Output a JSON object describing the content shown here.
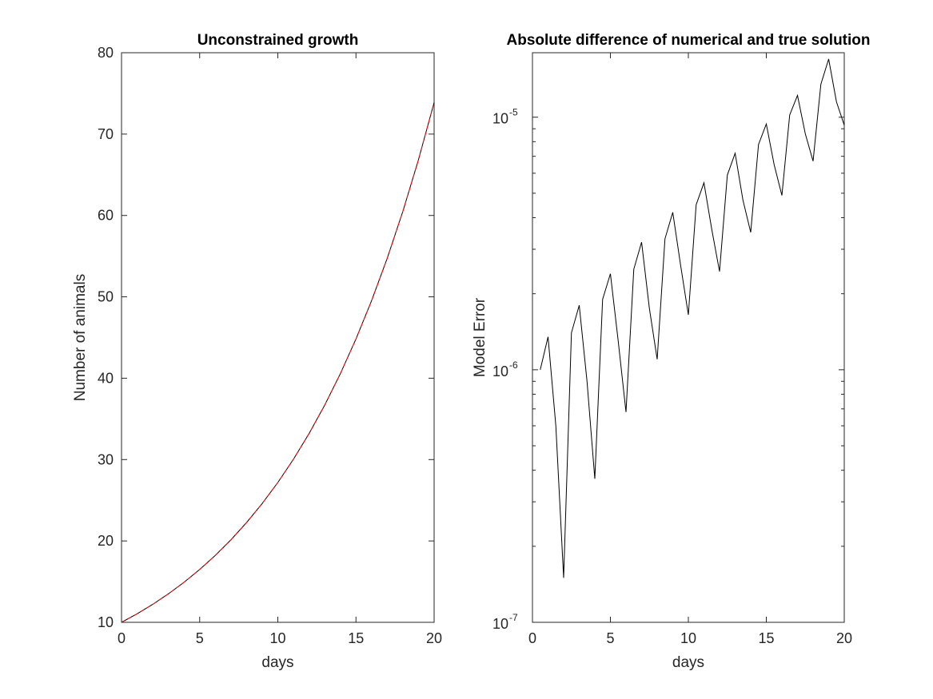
{
  "chart_data": [
    {
      "type": "line",
      "title": "Unconstrained growth",
      "xlabel": "days",
      "ylabel": "Number of animals",
      "xlim": [
        0,
        20
      ],
      "ylim": [
        10,
        80
      ],
      "yscale": "linear",
      "xticks": [
        "0",
        "5",
        "10",
        "15",
        "20"
      ],
      "yticks": [
        "10",
        "20",
        "30",
        "40",
        "50",
        "60",
        "70",
        "80"
      ],
      "grid": false,
      "series": [
        {
          "color": "#000000",
          "style": "solid",
          "x": [
            0,
            1,
            2,
            3,
            4,
            5,
            6,
            7,
            8,
            9,
            10,
            11,
            12,
            13,
            14,
            15,
            16,
            17,
            18,
            19,
            20
          ],
          "y": [
            10,
            11.05,
            12.21,
            13.5,
            14.92,
            16.49,
            18.22,
            20.14,
            22.26,
            24.6,
            27.18,
            30.04,
            33.2,
            36.69,
            40.55,
            44.82,
            49.53,
            54.74,
            60.5,
            66.86,
            73.89
          ]
        },
        {
          "color": "#ff0000",
          "style": "dashed",
          "x": [
            0,
            1,
            2,
            3,
            4,
            5,
            6,
            7,
            8,
            9,
            10,
            11,
            12,
            13,
            14,
            15,
            16,
            17,
            18,
            19,
            20
          ],
          "y": [
            10,
            11.05,
            12.21,
            13.5,
            14.92,
            16.49,
            18.22,
            20.14,
            22.26,
            24.6,
            27.18,
            30.04,
            33.2,
            36.69,
            40.55,
            44.82,
            49.53,
            54.74,
            60.5,
            66.86,
            73.89
          ]
        }
      ]
    },
    {
      "type": "line",
      "title": "Absolute difference of numerical and true solution",
      "xlabel": "days",
      "ylabel": "Model Error",
      "xlim": [
        0,
        20
      ],
      "ylim": [
        1e-07,
        1.8e-05
      ],
      "yscale": "log",
      "xticks": [
        "0",
        "5",
        "10",
        "15",
        "20"
      ],
      "yticks": [
        {
          "value": 1e-07,
          "base": "10",
          "exp": "-7"
        },
        {
          "value": 1e-06,
          "base": "10",
          "exp": "-6"
        },
        {
          "value": 1e-05,
          "base": "10",
          "exp": "-5"
        }
      ],
      "grid": false,
      "series": [
        {
          "color": "#000000",
          "style": "solid",
          "x": [
            0.5,
            1,
            1.5,
            2,
            2.5,
            3,
            3.5,
            4,
            4.5,
            5,
            5.5,
            6,
            6.5,
            7,
            7.5,
            8,
            8.5,
            9,
            9.5,
            10,
            10.5,
            11,
            11.5,
            12,
            12.5,
            13,
            13.5,
            14,
            14.5,
            15,
            15.5,
            16,
            16.5,
            17,
            17.5,
            18,
            18.5,
            19,
            19.5,
            20
          ],
          "y": [
            1e-06,
            1.35e-06,
            6e-07,
            1.5e-07,
            1.4e-06,
            1.8e-06,
            9e-07,
            3.7e-07,
            1.9e-06,
            2.4e-06,
            1.3e-06,
            6.8e-07,
            2.5e-06,
            3.2e-06,
            1.75e-06,
            1.1e-06,
            3.3e-06,
            4.2e-06,
            2.6e-06,
            1.65e-06,
            4.5e-06,
            5.5e-06,
            3.6e-06,
            2.45e-06,
            5.9e-06,
            7.2e-06,
            4.7e-06,
            3.5e-06,
            7.8e-06,
            9.4e-06,
            6.5e-06,
            4.9e-06,
            1.02e-05,
            1.22e-05,
            8.6e-06,
            6.7e-06,
            1.35e-05,
            1.7e-05,
            1.15e-05,
            9.3e-06
          ]
        }
      ]
    }
  ]
}
